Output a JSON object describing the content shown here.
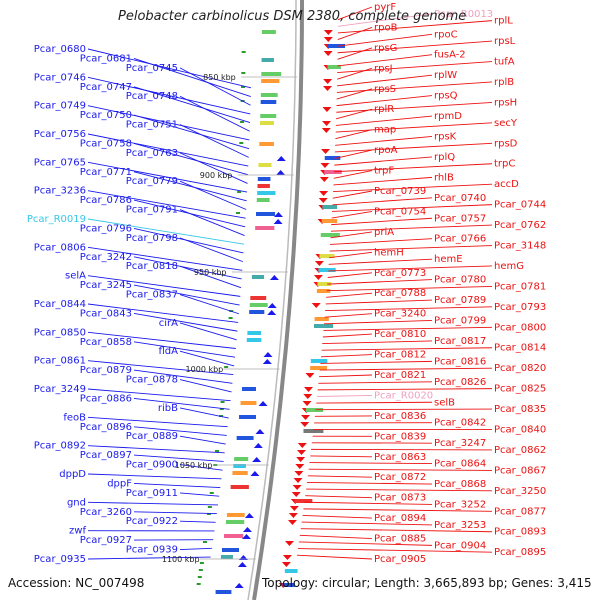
{
  "title": "Pelobacter carbinolicus DSM 2380, complete genome",
  "accession": "Accession: NC_007498",
  "summary": "Topology: circular; Length: 3,665,893 bp; Genes: 3,415",
  "colors": {
    "forward": "#1a1aee",
    "reverse": "#ee1111",
    "rna_forward": "#33c8e8",
    "rna_reverse": "#f0a0c0",
    "backbone": "#888888",
    "tick": "#2a9a2a"
  },
  "kbp_labels": [
    "850 kbp",
    "900 kbp",
    "950 kbp",
    "1000 kbp",
    "1050 kbp",
    "1100 kbp"
  ],
  "left_genes": [
    "Pcar_0680",
    "Pcar_0681",
    "Pcar_0745",
    "Pcar_0746",
    "Pcar_0747",
    "Pcar_0748",
    "Pcar_0749",
    "Pcar_0750",
    "Pcar_0751",
    "Pcar_0756",
    "Pcar_0758",
    "Pcar_0763",
    "Pcar_0765",
    "Pcar_0771",
    "Pcar_0779",
    "Pcar_3236",
    "Pcar_0786",
    "Pcar_0791",
    "Pcar_R0019",
    "Pcar_0796",
    "Pcar_0798",
    "Pcar_0806",
    "Pcar_3242",
    "Pcar_0818",
    "selA",
    "Pcar_3245",
    "Pcar_0837",
    "Pcar_0844",
    "Pcar_0843",
    "cirA",
    "Pcar_0850",
    "Pcar_0858",
    "fldA",
    "Pcar_0861",
    "Pcar_0879",
    "Pcar_0878",
    "Pcar_3249",
    "Pcar_0886",
    "ribB",
    "feoB",
    "Pcar_0896",
    "Pcar_0889",
    "Pcar_0892",
    "Pcar_0897",
    "Pcar_0900",
    "dppD",
    "dppF",
    "Pcar_0911",
    "gnd",
    "Pcar_3260",
    "Pcar_0922",
    "zwf",
    "Pcar_0927",
    "Pcar_0939",
    "Pcar_0935"
  ],
  "right_genes": [
    "pyrF",
    "Pcar_R0013",
    "rplL",
    "rpoB",
    "rpoC",
    "rpsL",
    "rpsG",
    "fusA-2",
    "tufA",
    "rpsJ",
    "rplW",
    "rplB",
    "rpsS",
    "rpsQ",
    "rpsH",
    "rplR",
    "rpmD",
    "secY",
    "map",
    "rpsK",
    "rpsD",
    "rpoA",
    "rplQ",
    "trpC",
    "trpF",
    "rhlB",
    "accD",
    "Pcar_0739",
    "Pcar_0740",
    "Pcar_0744",
    "Pcar_0754",
    "Pcar_0757",
    "Pcar_0762",
    "priA",
    "Pcar_0766",
    "Pcar_3148",
    "hemH",
    "hemE",
    "hemG",
    "Pcar_0773",
    "Pcar_0780",
    "Pcar_0781",
    "Pcar_0788",
    "Pcar_0789",
    "Pcar_0793",
    "Pcar_3240",
    "Pcar_0799",
    "Pcar_0800",
    "Pcar_0810",
    "Pcar_0817",
    "Pcar_0814",
    "Pcar_0812",
    "Pcar_0816",
    "Pcar_0820",
    "Pcar_0821",
    "Pcar_0826",
    "Pcar_0825",
    "Pcar_R0020",
    "selB",
    "Pcar_0835",
    "Pcar_0836",
    "Pcar_0842",
    "Pcar_0840",
    "Pcar_0839",
    "Pcar_3247",
    "Pcar_0862",
    "Pcar_0863",
    "Pcar_0864",
    "Pcar_0867",
    "Pcar_0872",
    "Pcar_0868",
    "Pcar_3250",
    "Pcar_0873",
    "Pcar_3252",
    "Pcar_0877",
    "Pcar_0894",
    "Pcar_3253",
    "Pcar_0893",
    "Pcar_0885",
    "Pcar_0904",
    "Pcar_0895",
    "Pcar_0905"
  ]
}
